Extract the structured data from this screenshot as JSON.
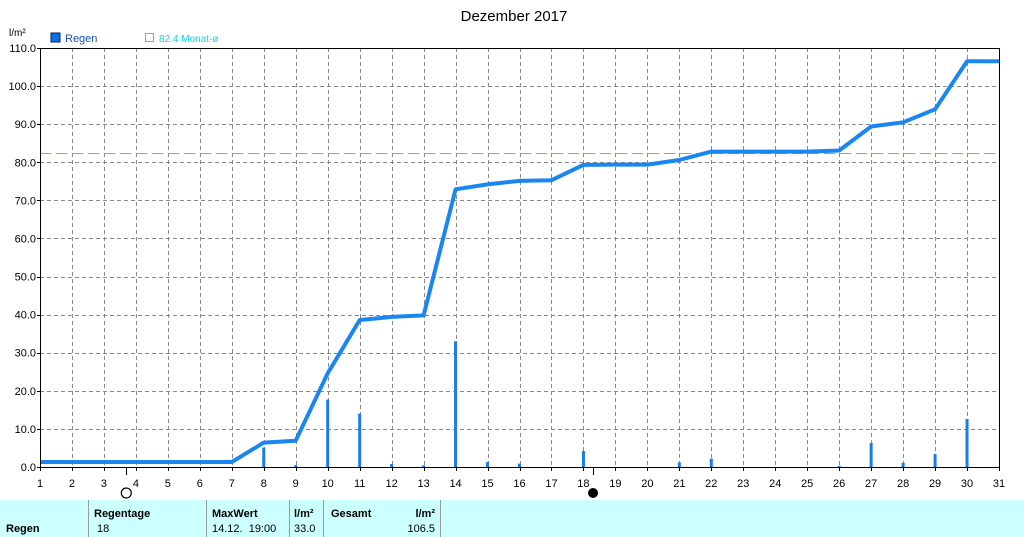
{
  "chart_data": {
    "type": "line",
    "title": "Dezember 2017",
    "ylabel": "l/m²",
    "ylim": [
      0,
      110
    ],
    "xlim": [
      1,
      31
    ],
    "grid": true,
    "yticks": [
      "0.0",
      "10.0",
      "20.0",
      "30.0",
      "40.0",
      "50.0",
      "60.0",
      "70.0",
      "80.0",
      "90.0",
      "100.0",
      "110.0"
    ],
    "xticks": [
      "1",
      "2",
      "3",
      "4",
      "5",
      "6",
      "7",
      "8",
      "9",
      "10",
      "11",
      "12",
      "13",
      "14",
      "15",
      "16",
      "17",
      "18",
      "19",
      "20",
      "21",
      "22",
      "23",
      "24",
      "25",
      "26",
      "27",
      "28",
      "29",
      "30",
      "31"
    ],
    "legend": [
      {
        "label": "Regen",
        "color": "#0a6fe0"
      },
      {
        "label": "82.4 Monat-ø",
        "color": "#19d6dd"
      }
    ],
    "reference_line": {
      "label": "82.4 Monat-ø",
      "value": 82.4,
      "color": "#19d6dd"
    },
    "series": [
      {
        "name": "Regen",
        "color": "#1a86f0",
        "x": [
          1,
          7,
          8,
          9,
          10,
          11,
          12,
          13,
          14,
          15,
          16,
          17,
          18,
          19,
          20,
          21,
          22,
          23,
          24,
          25,
          26,
          27,
          28,
          29,
          30,
          31
        ],
        "values": [
          1.3,
          1.3,
          6.4,
          6.9,
          24.6,
          38.6,
          39.4,
          39.8,
          72.9,
          74.2,
          75.1,
          75.3,
          79.3,
          79.4,
          79.4,
          80.6,
          82.8,
          82.8,
          82.8,
          82.8,
          83.1,
          89.4,
          90.5,
          93.9,
          106.5,
          106.5
        ]
      }
    ],
    "daily_bars": {
      "color": "#1a7ce8",
      "x": [
        8,
        9,
        10,
        11,
        12,
        13,
        14,
        15,
        16,
        18,
        21,
        22,
        26,
        27,
        28,
        29,
        30
      ],
      "values": [
        5.1,
        0.5,
        17.7,
        14.0,
        0.8,
        0.4,
        33.0,
        1.3,
        0.9,
        4.2,
        1.2,
        2.2,
        0.3,
        6.3,
        1.1,
        3.4,
        12.6
      ]
    },
    "moon_phases": [
      {
        "day": 3.7,
        "phase": "full"
      },
      {
        "day": 18.3,
        "phase": "new"
      }
    ]
  },
  "footer": {
    "row_label": "Regen",
    "rain_days_label": "Regentage",
    "rain_days_value": "18",
    "max_label": "MaxWert",
    "max_unit": "l/m²",
    "max_datetime": "14.12.  19:00",
    "max_value": "33.0",
    "total_label": "Gesamt",
    "total_unit": "l/m²",
    "total_value": "106.5"
  }
}
